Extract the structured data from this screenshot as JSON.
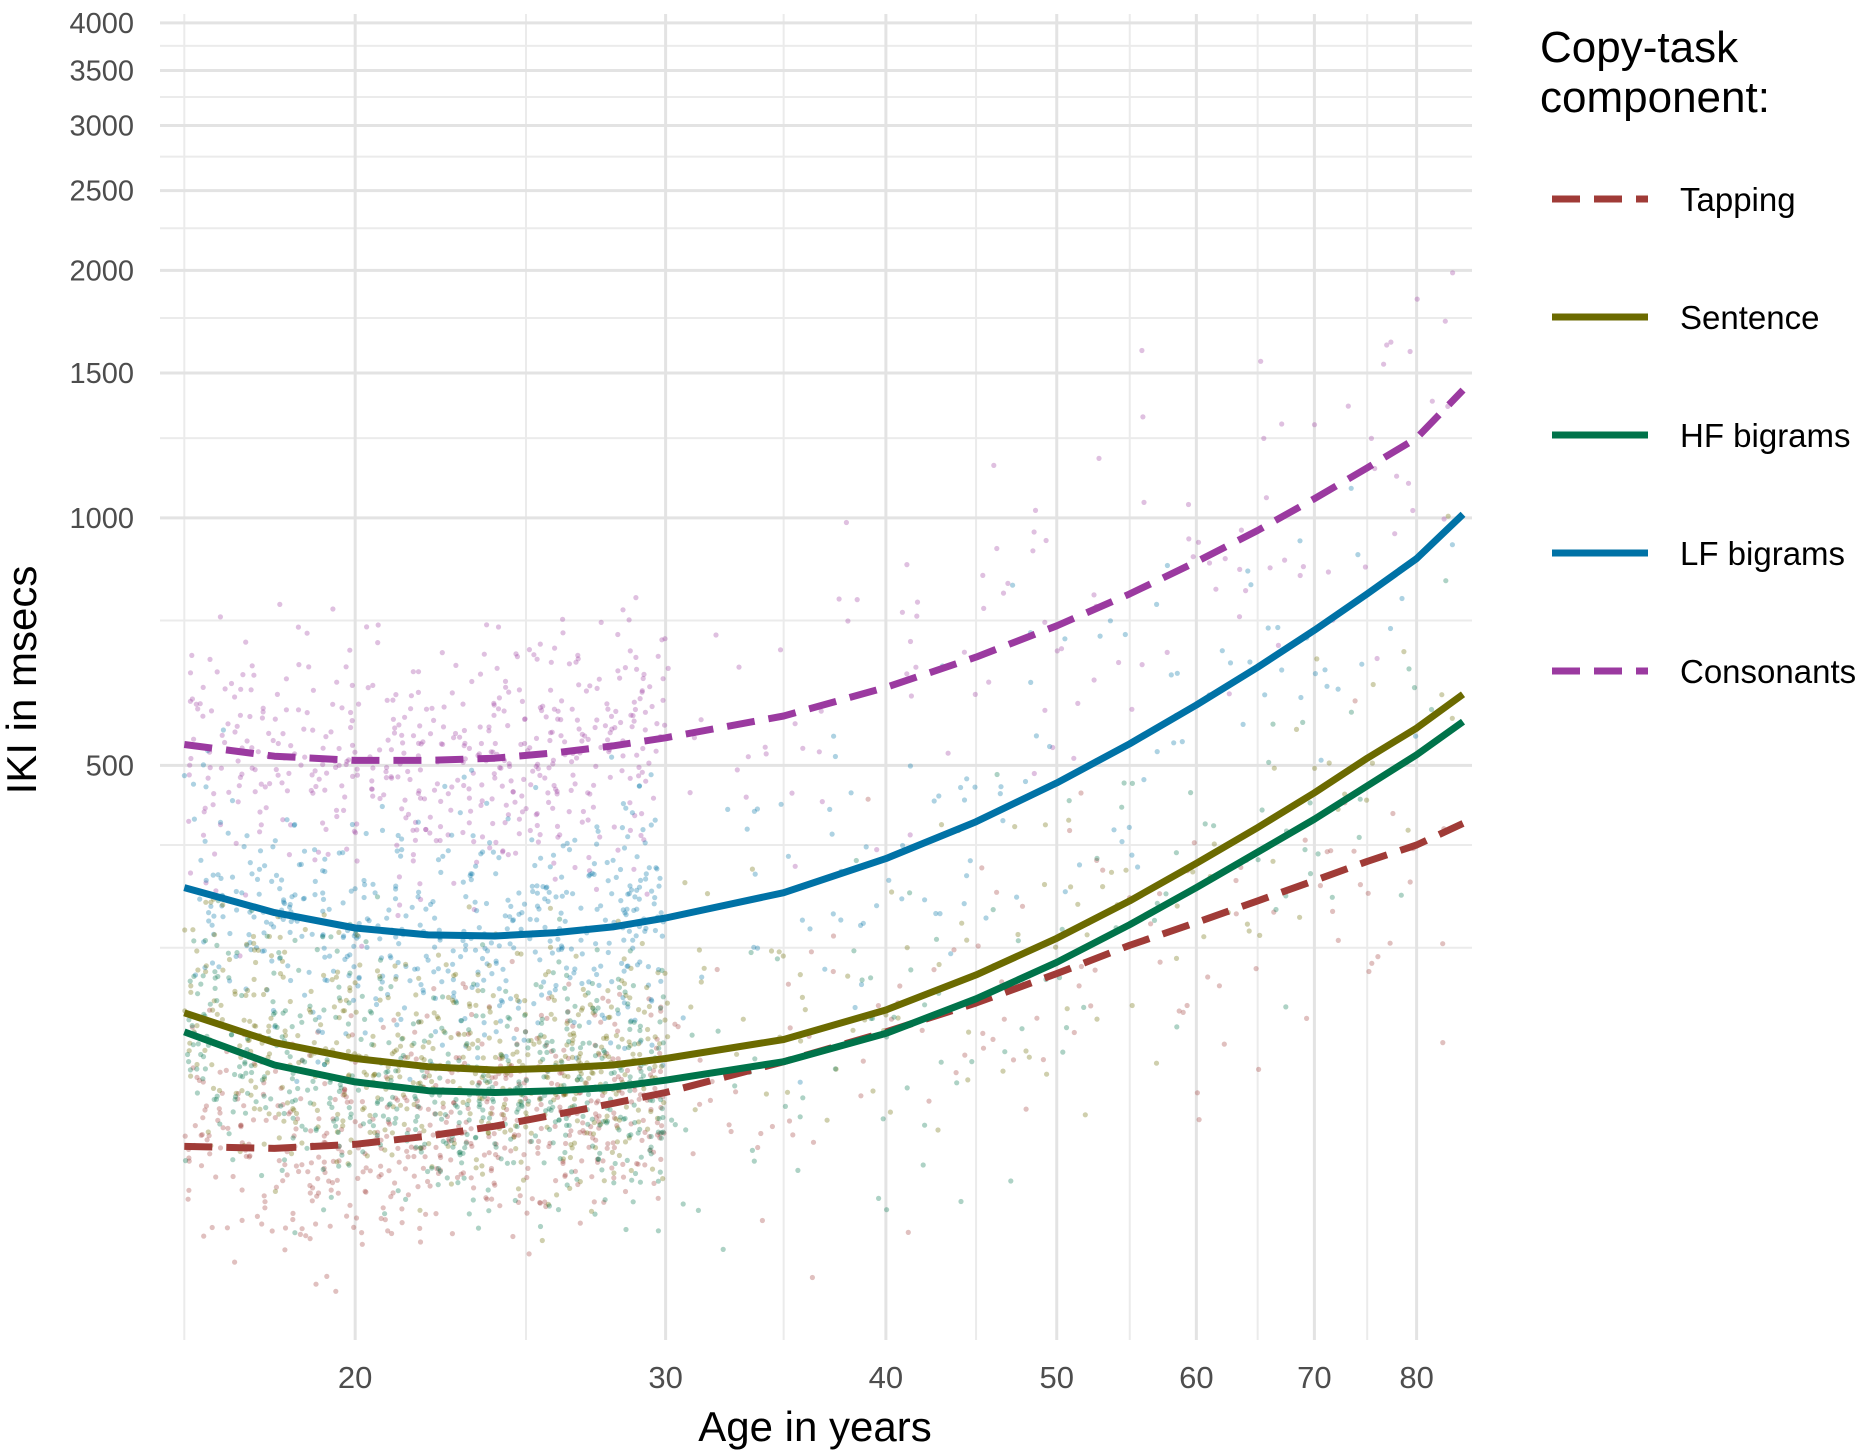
{
  "chart_data": {
    "type": "line",
    "xlabel": "Age in years",
    "ylabel": "IKI in msecs",
    "x_scale": "log",
    "y_scale": "log",
    "xlim": [
      15.5,
      86
    ],
    "ylim": [
      100,
      4100
    ],
    "x_ticks": [
      20,
      30,
      40,
      50,
      60,
      70,
      80
    ],
    "x_minor_grid": [
      16,
      25,
      35,
      45,
      55,
      65,
      75
    ],
    "y_ticks": [
      500,
      1000,
      1500,
      2000,
      2500,
      3000,
      3500,
      4000
    ],
    "y_minor_grid": [
      400,
      300,
      750,
      1250,
      1750,
      2250,
      2750,
      3250,
      3750
    ],
    "legend_title_lines": [
      "Copy-task",
      "component:"
    ],
    "legend_position": "right",
    "x": [
      16,
      18,
      20,
      22,
      24,
      26,
      28,
      30,
      35,
      40,
      45,
      50,
      55,
      60,
      65,
      70,
      75,
      80,
      85
    ],
    "series": [
      {
        "name": "Tapping",
        "color": "#a03b37",
        "dash": "dashed",
        "values": [
          172,
          171,
          173,
          177,
          182,
          188,
          194,
          200,
          218,
          237,
          257,
          279,
          302,
          322,
          342,
          362,
          382,
          400,
          425
        ]
      },
      {
        "name": "Sentence",
        "color": "#6b6a00",
        "dash": "solid",
        "values": [
          250,
          230,
          220,
          215,
          213,
          214,
          216,
          220,
          232,
          252,
          278,
          308,
          342,
          380,
          420,
          463,
          510,
          555,
          610
        ]
      },
      {
        "name": "HF bigrams",
        "color": "#00734a",
        "dash": "solid",
        "values": [
          237,
          216,
          206,
          201,
          200,
          201,
          203,
          207,
          218,
          236,
          260,
          288,
          320,
          355,
          392,
          430,
          472,
          515,
          565
        ]
      },
      {
        "name": "LF bigrams",
        "color": "#0072a6",
        "dash": "solid",
        "values": [
          355,
          331,
          317,
          311,
          310,
          313,
          318,
          326,
          350,
          385,
          427,
          476,
          531,
          592,
          658,
          730,
          808,
          892,
          1010
        ]
      },
      {
        "name": "Consonants",
        "color": "#9b3aa0",
        "dash": "dashed",
        "values": [
          530,
          513,
          507,
          507,
          510,
          518,
          528,
          540,
          574,
          622,
          677,
          739,
          808,
          884,
          965,
          1055,
          1150,
          1250,
          1430
        ]
      }
    ]
  }
}
